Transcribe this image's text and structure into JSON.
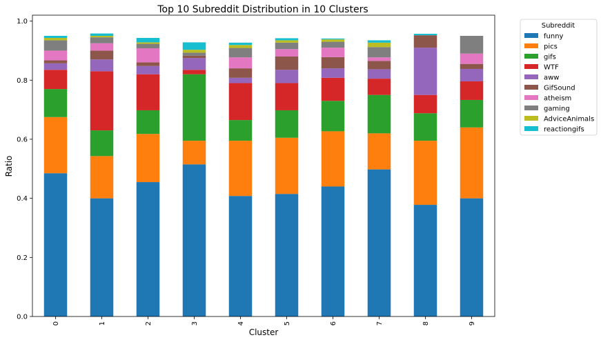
{
  "chart_data": {
    "type": "bar",
    "stacked": true,
    "title": "Top 10 Subreddit Distribution in 10 Clusters",
    "xlabel": "Cluster",
    "ylabel": "Ratio",
    "ylim": [
      0,
      1.02
    ],
    "yticks": [
      "0.0",
      "0.2",
      "0.4",
      "0.6",
      "0.8",
      "1.0"
    ],
    "categories": [
      "0",
      "1",
      "2",
      "3",
      "4",
      "5",
      "6",
      "7",
      "8",
      "9"
    ],
    "legend_title": "Subreddit",
    "legend_position": "outside-upper-right",
    "grid": false,
    "series": [
      {
        "name": "funny",
        "color": "#1f77b4",
        "values": [
          0.485,
          0.4,
          0.455,
          0.515,
          0.408,
          0.415,
          0.44,
          0.498,
          0.378,
          0.4
        ]
      },
      {
        "name": "pics",
        "color": "#ff7f0e",
        "values": [
          0.19,
          0.143,
          0.163,
          0.08,
          0.187,
          0.19,
          0.187,
          0.122,
          0.217,
          0.24
        ]
      },
      {
        "name": "gifs",
        "color": "#2ca02c",
        "values": [
          0.095,
          0.087,
          0.08,
          0.225,
          0.07,
          0.093,
          0.103,
          0.13,
          0.093,
          0.093
        ]
      },
      {
        "name": "WTF",
        "color": "#d62728",
        "values": [
          0.065,
          0.2,
          0.122,
          0.015,
          0.125,
          0.092,
          0.078,
          0.055,
          0.062,
          0.063
        ]
      },
      {
        "name": "aww",
        "color": "#9467bd",
        "values": [
          0.022,
          0.04,
          0.028,
          0.04,
          0.018,
          0.045,
          0.032,
          0.032,
          0.16,
          0.042
        ]
      },
      {
        "name": "GifSound",
        "color": "#8c564b",
        "values": [
          0.01,
          0.03,
          0.012,
          0.008,
          0.032,
          0.045,
          0.038,
          0.028,
          0.042,
          0.017
        ]
      },
      {
        "name": "atheism",
        "color": "#e377c2",
        "values": [
          0.033,
          0.025,
          0.048,
          0.0,
          0.037,
          0.025,
          0.032,
          0.012,
          0.0,
          0.035
        ]
      },
      {
        "name": "gaming",
        "color": "#7f7f7f",
        "values": [
          0.035,
          0.02,
          0.015,
          0.01,
          0.032,
          0.022,
          0.02,
          0.035,
          0.0,
          0.06
        ]
      },
      {
        "name": "AdviceAnimals",
        "color": "#bcbd22",
        "values": [
          0.008,
          0.005,
          0.005,
          0.01,
          0.01,
          0.008,
          0.008,
          0.015,
          0.0,
          0.0
        ]
      },
      {
        "name": "reactiongifs",
        "color": "#17becf",
        "values": [
          0.007,
          0.008,
          0.015,
          0.025,
          0.008,
          0.007,
          0.003,
          0.008,
          0.005,
          0.0
        ]
      }
    ]
  }
}
